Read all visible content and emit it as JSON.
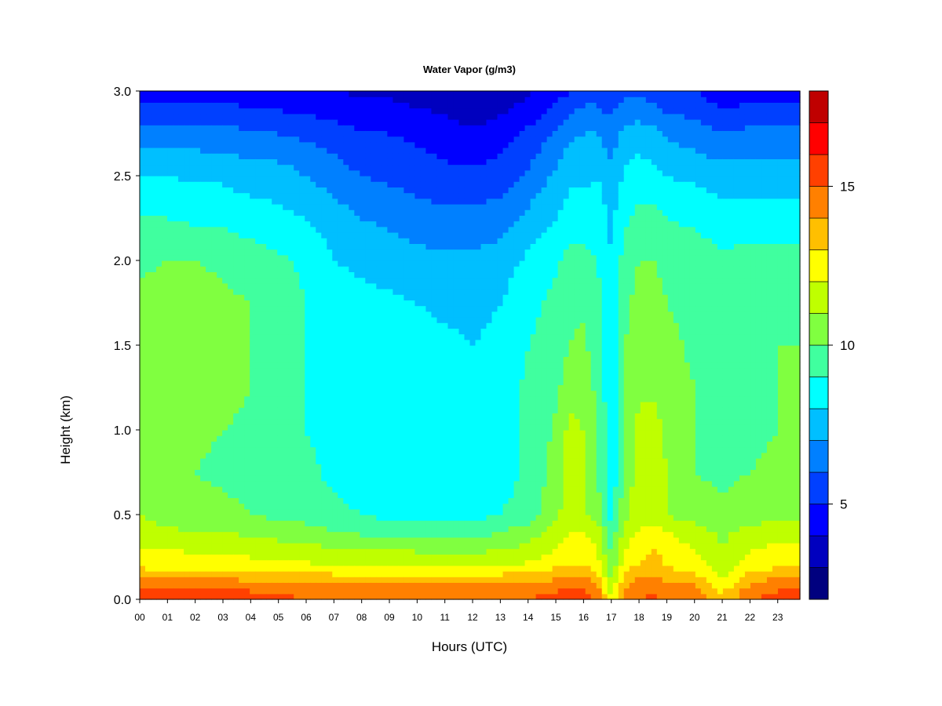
{
  "chart_data": {
    "type": "heatmap",
    "title": "Water Vapor (g/m3)",
    "xlabel": "Hours (UTC)",
    "ylabel": "Height (km)",
    "x_ticks": [
      "00",
      "01",
      "02",
      "03",
      "04",
      "05",
      "06",
      "07",
      "08",
      "09",
      "10",
      "11",
      "12",
      "13",
      "14",
      "15",
      "16",
      "17",
      "18",
      "19",
      "20",
      "21",
      "22",
      "23"
    ],
    "x_range": [
      0,
      23.8
    ],
    "y_ticks": [
      "0.0",
      "0.5",
      "1.0",
      "1.5",
      "2.0",
      "2.5",
      "3.0"
    ],
    "y_range": [
      0,
      3.0
    ],
    "colorbar": {
      "range": [
        2,
        18
      ],
      "ticks": [
        "5",
        "10",
        "15"
      ],
      "levels": [
        2,
        3,
        4,
        5,
        6,
        7,
        8,
        9,
        10,
        11,
        12,
        13,
        14,
        15,
        16,
        17,
        18
      ],
      "colors": [
        "#00007F",
        "#0000BF",
        "#0000FF",
        "#0040FF",
        "#0080FF",
        "#00BFFF",
        "#00FFFF",
        "#40FF9F",
        "#80FF40",
        "#BFFF00",
        "#FFFF00",
        "#FFBF00",
        "#FF8000",
        "#FF4000",
        "#FF0000",
        "#BF0000"
      ]
    },
    "profiles": {
      "heights": [
        0.0,
        0.05,
        0.1,
        0.15,
        0.2,
        0.3,
        0.4,
        0.5,
        0.75,
        1.0,
        1.25,
        1.5,
        1.75,
        2.0,
        2.25,
        2.5,
        2.75,
        3.0
      ],
      "hours": [
        0,
        1,
        2,
        3,
        4,
        5,
        6,
        7,
        8,
        9,
        10,
        11,
        12,
        13,
        14,
        15,
        15.5,
        16,
        16.5,
        17,
        17.5,
        18,
        18.5,
        19,
        20,
        21,
        22,
        23,
        23.8
      ],
      "values": [
        [
          16.0,
          15.0,
          14.5,
          13.5,
          12.8,
          12.0,
          11.5,
          11.0,
          10.5,
          10.5,
          10.5,
          10.5,
          10.2,
          9.8,
          9.0,
          8.0,
          6.5,
          4.5
        ],
        [
          16.0,
          15.0,
          14.5,
          13.5,
          12.5,
          12.0,
          11.2,
          10.5,
          10.5,
          10.3,
          10.3,
          10.5,
          10.5,
          10.0,
          9.0,
          8.0,
          6.5,
          4.5
        ],
        [
          16.0,
          15.0,
          14.5,
          13.5,
          12.5,
          11.8,
          11.0,
          10.3,
          10.0,
          10.2,
          10.5,
          10.5,
          10.5,
          10.0,
          8.8,
          7.8,
          6.5,
          4.5
        ],
        [
          16.0,
          15.0,
          14.5,
          13.5,
          12.5,
          11.8,
          11.0,
          10.3,
          9.8,
          10.0,
          10.3,
          10.3,
          10.2,
          9.8,
          8.8,
          7.8,
          6.3,
          4.5
        ],
        [
          15.5,
          15.0,
          14.2,
          13.2,
          12.5,
          11.5,
          10.8,
          10.0,
          9.6,
          9.8,
          10.0,
          10.0,
          10.0,
          9.5,
          8.5,
          7.5,
          6.2,
          4.3
        ],
        [
          15.5,
          14.8,
          14.0,
          13.0,
          12.3,
          11.5,
          10.5,
          9.8,
          9.5,
          9.5,
          9.5,
          9.5,
          9.5,
          9.2,
          8.3,
          7.5,
          6.0,
          4.2
        ],
        [
          15.0,
          14.5,
          14.0,
          13.0,
          12.2,
          11.3,
          10.5,
          9.5,
          9.2,
          9.0,
          9.0,
          9.0,
          9.0,
          8.8,
          8.0,
          7.0,
          5.8,
          4.0
        ],
        [
          15.0,
          14.5,
          13.8,
          13.0,
          12.0,
          11.0,
          10.0,
          9.3,
          8.8,
          8.7,
          8.7,
          8.7,
          8.5,
          8.0,
          7.5,
          6.5,
          5.5,
          4.0
        ],
        [
          15.0,
          14.5,
          13.8,
          12.8,
          12.0,
          11.0,
          9.8,
          9.0,
          8.4,
          8.3,
          8.4,
          8.5,
          8.3,
          7.8,
          7.0,
          6.0,
          5.0,
          3.8
        ],
        [
          15.0,
          14.5,
          13.8,
          12.8,
          12.0,
          10.8,
          9.5,
          8.8,
          8.2,
          8.3,
          8.5,
          8.5,
          8.2,
          7.5,
          6.8,
          5.8,
          5.0,
          3.8
        ],
        [
          15.0,
          14.5,
          13.8,
          12.8,
          12.0,
          10.8,
          9.5,
          8.8,
          8.2,
          8.3,
          8.4,
          8.4,
          8.0,
          7.3,
          6.5,
          5.5,
          4.8,
          3.5
        ],
        [
          15.0,
          14.5,
          13.8,
          12.8,
          11.8,
          10.7,
          9.5,
          8.6,
          8.2,
          8.2,
          8.2,
          8.2,
          7.8,
          7.2,
          6.3,
          5.3,
          4.5,
          3.3
        ],
        [
          15.0,
          14.5,
          13.8,
          12.8,
          11.8,
          10.7,
          9.5,
          8.7,
          8.2,
          8.2,
          8.2,
          8.0,
          7.8,
          7.2,
          6.3,
          5.2,
          4.2,
          3.0
        ],
        [
          15.0,
          14.5,
          14.0,
          13.0,
          12.0,
          11.0,
          10.0,
          9.0,
          8.5,
          8.5,
          8.5,
          8.2,
          8.0,
          7.5,
          6.5,
          5.5,
          4.5,
          3.3
        ],
        [
          15.0,
          14.5,
          14.0,
          13.2,
          12.2,
          11.2,
          10.5,
          9.5,
          9.2,
          9.2,
          9.2,
          9.0,
          8.7,
          8.2,
          7.3,
          6.2,
          5.2,
          3.8
        ],
        [
          15.5,
          15.0,
          14.3,
          13.5,
          12.8,
          12.0,
          11.5,
          10.8,
          10.3,
          10.2,
          9.8,
          9.5,
          9.3,
          8.8,
          8.0,
          7.2,
          6.2,
          4.5
        ],
        [
          15.5,
          15.0,
          14.5,
          13.8,
          13.0,
          12.5,
          12.0,
          11.5,
          11.3,
          11.3,
          10.5,
          10.0,
          9.8,
          9.3,
          8.5,
          7.8,
          6.8,
          5.0
        ],
        [
          15.5,
          15.0,
          14.5,
          13.8,
          13.0,
          12.5,
          12.0,
          11.0,
          11.0,
          11.0,
          10.5,
          10.2,
          9.8,
          9.3,
          8.5,
          7.8,
          7.0,
          5.5
        ],
        [
          15.0,
          14.5,
          14.0,
          13.3,
          12.5,
          12.0,
          11.5,
          10.5,
          10.0,
          10.0,
          9.8,
          9.5,
          9.3,
          9.0,
          8.5,
          8.0,
          7.0,
          5.5
        ],
        [
          12.0,
          11.5,
          11.0,
          10.5,
          10.2,
          9.8,
          9.3,
          8.5,
          8.2,
          8.2,
          8.2,
          8.3,
          8.2,
          8.0,
          7.8,
          7.3,
          6.5,
          5.2
        ],
        [
          14.5,
          14.2,
          13.8,
          13.2,
          12.5,
          12.0,
          11.5,
          10.8,
          10.5,
          10.5,
          10.2,
          10.0,
          9.8,
          9.5,
          8.8,
          8.2,
          7.3,
          5.8
        ],
        [
          15.0,
          14.8,
          14.3,
          13.8,
          13.0,
          12.5,
          12.0,
          11.5,
          11.3,
          11.3,
          10.8,
          10.5,
          10.3,
          10.0,
          9.3,
          8.5,
          7.5,
          5.8
        ],
        [
          15.2,
          14.8,
          14.5,
          14.0,
          13.5,
          13.0,
          12.5,
          11.5,
          11.5,
          11.5,
          10.8,
          10.5,
          10.3,
          10.0,
          9.3,
          8.3,
          7.3,
          5.5
        ],
        [
          15.0,
          14.5,
          14.0,
          13.5,
          13.0,
          12.5,
          12.0,
          11.0,
          11.0,
          10.8,
          10.5,
          10.3,
          10.0,
          9.8,
          9.0,
          8.0,
          6.8,
          5.2
        ],
        [
          15.0,
          14.5,
          13.8,
          13.0,
          12.5,
          12.0,
          11.5,
          10.5,
          10.0,
          10.0,
          10.0,
          9.8,
          9.7,
          9.5,
          8.8,
          7.8,
          6.5,
          5.0
        ],
        [
          13.0,
          12.8,
          12.3,
          11.8,
          11.5,
          11.0,
          10.8,
          10.2,
          9.8,
          9.6,
          9.6,
          9.5,
          9.5,
          9.2,
          8.5,
          7.5,
          6.0,
          4.3
        ],
        [
          15.0,
          14.5,
          13.8,
          13.2,
          12.5,
          12.0,
          11.3,
          10.5,
          10.0,
          9.8,
          9.7,
          9.6,
          9.5,
          9.3,
          8.5,
          7.5,
          6.3,
          4.5
        ],
        [
          15.5,
          15.0,
          14.5,
          13.5,
          12.8,
          12.2,
          11.5,
          10.8,
          10.2,
          10.0,
          10.0,
          10.0,
          9.8,
          9.3,
          8.5,
          7.5,
          6.3,
          4.5
        ],
        [
          16.0,
          15.5,
          14.8,
          13.8,
          13.0,
          12.3,
          11.5,
          10.8,
          10.3,
          10.0,
          10.0,
          10.0,
          9.8,
          9.3,
          8.5,
          7.5,
          6.3,
          4.5
        ]
      ]
    }
  }
}
